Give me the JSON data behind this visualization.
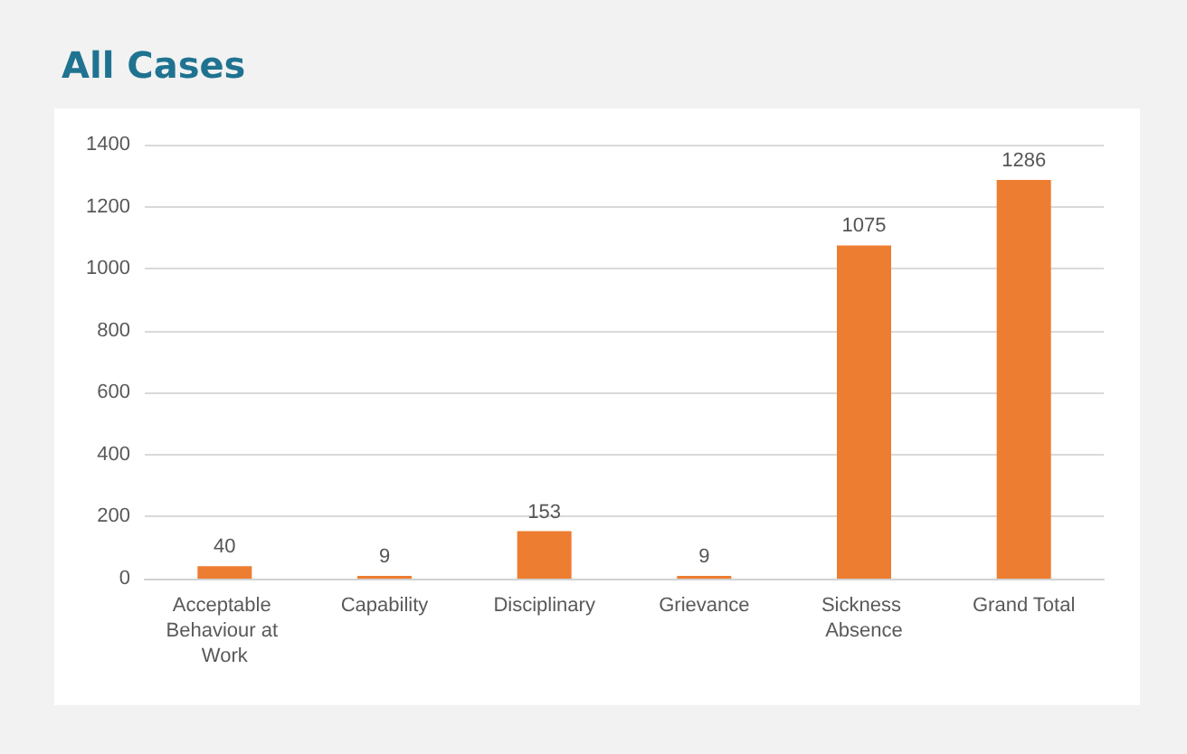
{
  "chart_data": {
    "type": "bar",
    "title": "All Cases",
    "categories": [
      "Acceptable Behaviour at Work",
      "Capability",
      "Disciplinary",
      "Grievance",
      "Sickness Absence",
      "Grand Total"
    ],
    "values": [
      40,
      9,
      153,
      9,
      1075,
      1286
    ],
    "color": "#ed7d31",
    "ylim": [
      0,
      1400
    ],
    "yticks": [
      0,
      200,
      400,
      600,
      800,
      1000,
      1200,
      1400
    ],
    "grid": "y",
    "data_labels": true
  }
}
